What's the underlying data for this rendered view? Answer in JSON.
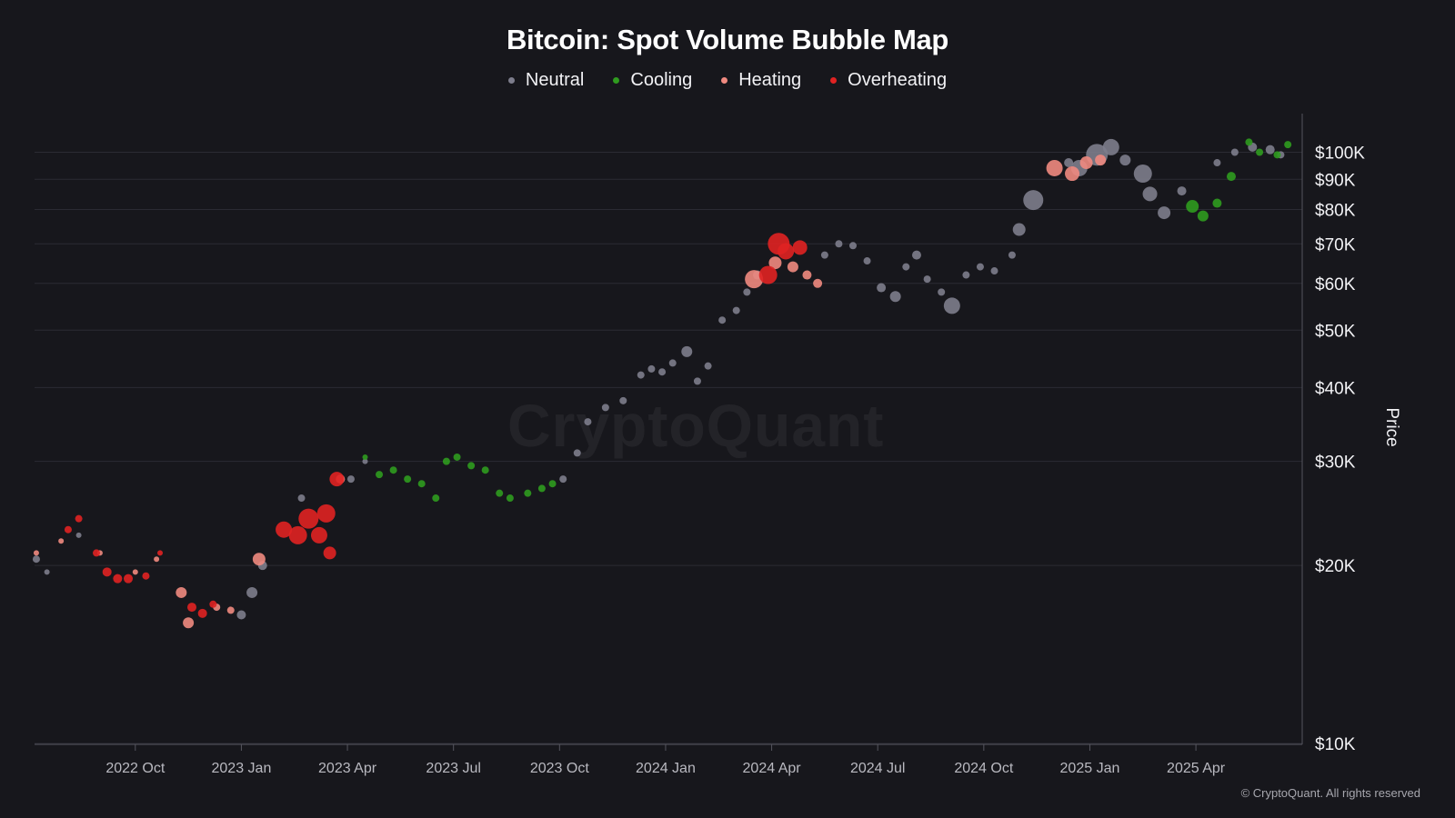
{
  "chart_data": {
    "type": "scatter",
    "title": "Bitcoin: Spot Volume Bubble Map",
    "ylabel": "Price",
    "xlabel": "",
    "yscale": "log",
    "ylim": [
      10000,
      115000
    ],
    "y_ticks": [
      {
        "value": 10000,
        "label": "$10K"
      },
      {
        "value": 20000,
        "label": "$20K"
      },
      {
        "value": 30000,
        "label": "$30K"
      },
      {
        "value": 40000,
        "label": "$40K"
      },
      {
        "value": 50000,
        "label": "$50K"
      },
      {
        "value": 60000,
        "label": "$60K"
      },
      {
        "value": 70000,
        "label": "$70K"
      },
      {
        "value": 80000,
        "label": "$80K"
      },
      {
        "value": 90000,
        "label": "$90K"
      },
      {
        "value": 100000,
        "label": "$100K"
      }
    ],
    "x_ticks": [
      {
        "value": 2,
        "label": "2022 Oct"
      },
      {
        "value": 5,
        "label": "2023 Jan"
      },
      {
        "value": 8,
        "label": "2023 Apr"
      },
      {
        "value": 11,
        "label": "2023 Jul"
      },
      {
        "value": 14,
        "label": "2023 Oct"
      },
      {
        "value": 17,
        "label": "2024 Jan"
      },
      {
        "value": 20,
        "label": "2024 Apr"
      },
      {
        "value": 23,
        "label": "2024 Jul"
      },
      {
        "value": 26,
        "label": "2024 Oct"
      },
      {
        "value": 29,
        "label": "2025 Jan"
      },
      {
        "value": 32,
        "label": "2025 Apr"
      }
    ],
    "xlim": [
      -0.85,
      34.75
    ],
    "x_units": "months since 2022-08-01",
    "legend": [
      {
        "key": "neutral",
        "label": "Neutral",
        "color": "#7d7d8c"
      },
      {
        "key": "cooling",
        "label": "Cooling",
        "color": "#2f9b1f"
      },
      {
        "key": "heating",
        "label": "Heating",
        "color": "#f08a80"
      },
      {
        "key": "overheating",
        "label": "Overheating",
        "color": "#e02222"
      }
    ],
    "series": [
      {
        "name": "Neutral",
        "key": "neutral",
        "x": [
          -0.8,
          -0.5,
          0.4,
          5.0,
          5.3,
          5.6,
          6.7,
          8.1,
          8.5,
          14.1,
          14.5,
          14.8,
          15.3,
          15.8,
          16.3,
          16.6,
          16.9,
          17.2,
          17.6,
          17.9,
          18.2,
          18.6,
          19.0,
          19.3,
          19.6,
          21.5,
          21.9,
          22.3,
          22.7,
          23.1,
          23.5,
          23.8,
          24.1,
          24.4,
          24.8,
          25.1,
          25.5,
          25.9,
          26.3,
          26.8,
          27.0,
          27.4,
          28.4,
          28.7,
          29.2,
          29.6,
          30.0,
          30.5,
          30.7,
          31.1,
          31.6,
          32.6,
          33.1,
          33.6,
          34.1,
          34.4
        ],
        "y": [
          20500,
          19500,
          22500,
          16500,
          18000,
          20000,
          26000,
          28000,
          30000,
          28000,
          31000,
          35000,
          37000,
          38000,
          42000,
          43000,
          42500,
          44000,
          46000,
          41000,
          43500,
          52000,
          54000,
          58000,
          62000,
          67000,
          70000,
          69500,
          65500,
          59000,
          57000,
          64000,
          67000,
          61000,
          58000,
          55000,
          62000,
          64000,
          63000,
          67000,
          74000,
          83000,
          96000,
          94000,
          99000,
          102000,
          97000,
          92000,
          85000,
          79000,
          86000,
          96000,
          100000,
          102000,
          101000,
          99000
        ],
        "sizes": [
          4,
          3,
          3,
          5,
          6,
          5,
          4,
          4,
          3,
          4,
          4,
          4,
          4,
          4,
          4,
          4,
          4,
          4,
          6,
          4,
          4,
          4,
          4,
          4,
          5,
          4,
          4,
          4,
          4,
          5,
          6,
          4,
          5,
          4,
          4,
          9,
          4,
          4,
          4,
          4,
          7,
          11,
          5,
          9,
          12,
          9,
          6,
          10,
          8,
          7,
          5,
          4,
          4,
          5,
          5,
          4
        ]
      },
      {
        "name": "Cooling",
        "key": "cooling",
        "x": [
          8.5,
          8.9,
          9.3,
          9.7,
          10.1,
          10.5,
          10.8,
          11.1,
          11.5,
          11.9,
          12.3,
          12.6,
          13.1,
          13.5,
          13.8,
          31.9,
          32.2,
          32.6,
          33.0,
          33.5,
          33.8,
          34.3,
          34.6
        ],
        "y": [
          30500,
          28500,
          29000,
          28000,
          27500,
          26000,
          30000,
          30500,
          29500,
          29000,
          26500,
          26000,
          26500,
          27000,
          27500,
          81000,
          78000,
          82000,
          91000,
          104000,
          100000,
          99000,
          103000
        ],
        "sizes": [
          3,
          4,
          4,
          4,
          4,
          4,
          4,
          4,
          4,
          4,
          4,
          4,
          4,
          4,
          4,
          7,
          6,
          5,
          5,
          4,
          4,
          4,
          4
        ]
      },
      {
        "name": "Heating",
        "key": "heating",
        "x": [
          -0.8,
          -0.1,
          1.0,
          2.0,
          2.6,
          3.3,
          3.5,
          4.3,
          4.7,
          5.5,
          7.8,
          19.5,
          20.1,
          20.6,
          21.0,
          21.3,
          28.0,
          28.5,
          28.9,
          29.3
        ],
        "y": [
          21000,
          22000,
          21000,
          19500,
          20500,
          18000,
          16000,
          17000,
          16800,
          20500,
          28000,
          61000,
          65000,
          64000,
          62000,
          60000,
          94000,
          92000,
          96000,
          97000
        ],
        "sizes": [
          3,
          3,
          3,
          3,
          3,
          6,
          6,
          4,
          4,
          7,
          5,
          10,
          7,
          6,
          5,
          5,
          9,
          8,
          7,
          6
        ]
      },
      {
        "name": "Overheating",
        "key": "overheating",
        "x": [
          0.1,
          0.4,
          0.9,
          1.2,
          1.5,
          1.8,
          2.3,
          2.7,
          3.6,
          3.9,
          4.2,
          6.2,
          6.6,
          6.9,
          7.2,
          7.4,
          7.5,
          7.7,
          19.9,
          20.2,
          20.4,
          20.8
        ],
        "y": [
          23000,
          24000,
          21000,
          19500,
          19000,
          19000,
          19200,
          21000,
          17000,
          16600,
          17200,
          23000,
          22500,
          24000,
          22500,
          24500,
          21000,
          28000,
          62000,
          70000,
          68000,
          69000
        ],
        "sizes": [
          4,
          4,
          4,
          5,
          5,
          5,
          4,
          3,
          5,
          5,
          4,
          9,
          10,
          11,
          9,
          10,
          7,
          8,
          10,
          12,
          9,
          8
        ]
      }
    ]
  },
  "watermark": "CryptoQuant",
  "copyright": "© CryptoQuant. All rights reserved"
}
